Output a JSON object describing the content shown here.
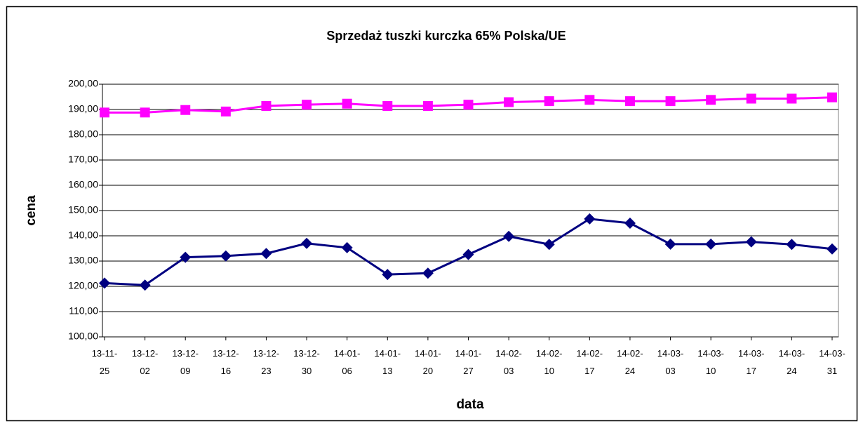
{
  "chart_data": {
    "type": "line",
    "title": "Sprzedaż tuszki kurczka 65% Polska/UE",
    "x_label": "data",
    "y_label": "cena",
    "categories": [
      "13-11-25",
      "13-12-02",
      "13-12-09",
      "13-12-16",
      "13-12-23",
      "13-12-30",
      "14-01-06",
      "14-01-13",
      "14-01-20",
      "14-01-27",
      "14-02-03",
      "14-02-10",
      "14-02-17",
      "14-02-24",
      "14-03-03",
      "14-03-10",
      "14-03-17",
      "14-03-24",
      "14-03-31"
    ],
    "series": [
      {
        "color": "#000080",
        "marker": "diamond",
        "values": [
          121.3,
          120.5,
          131.5,
          132,
          133,
          137,
          135.3,
          124.7,
          125.2,
          132.6,
          139.8,
          136.6,
          146.7,
          145,
          136.7,
          136.7,
          137.6,
          136.6,
          134.8
        ]
      },
      {
        "color": "#ff00ff",
        "marker": "square",
        "values": [
          188.8,
          188.8,
          189.8,
          189.2,
          191.4,
          191.9,
          192.3,
          191.4,
          191.4,
          191.9,
          192.9,
          193.3,
          193.8,
          193.3,
          193.3,
          193.8,
          194.3,
          194.3,
          194.8
        ]
      }
    ],
    "ylim": [
      100,
      200
    ],
    "yticks": [
      {
        "value": 100,
        "label": "100,00"
      },
      {
        "value": 110,
        "label": "110,00"
      },
      {
        "value": 120,
        "label": "120,00"
      },
      {
        "value": 130,
        "label": "130,00"
      },
      {
        "value": 140,
        "label": "140,00"
      },
      {
        "value": 150,
        "label": "150,00"
      },
      {
        "value": 160,
        "label": "160,00"
      },
      {
        "value": 170,
        "label": "170,00"
      },
      {
        "value": 180,
        "label": "180,00"
      },
      {
        "value": 190,
        "label": "190,00"
      },
      {
        "value": 200,
        "label": "200,00"
      }
    ],
    "grid": true
  }
}
